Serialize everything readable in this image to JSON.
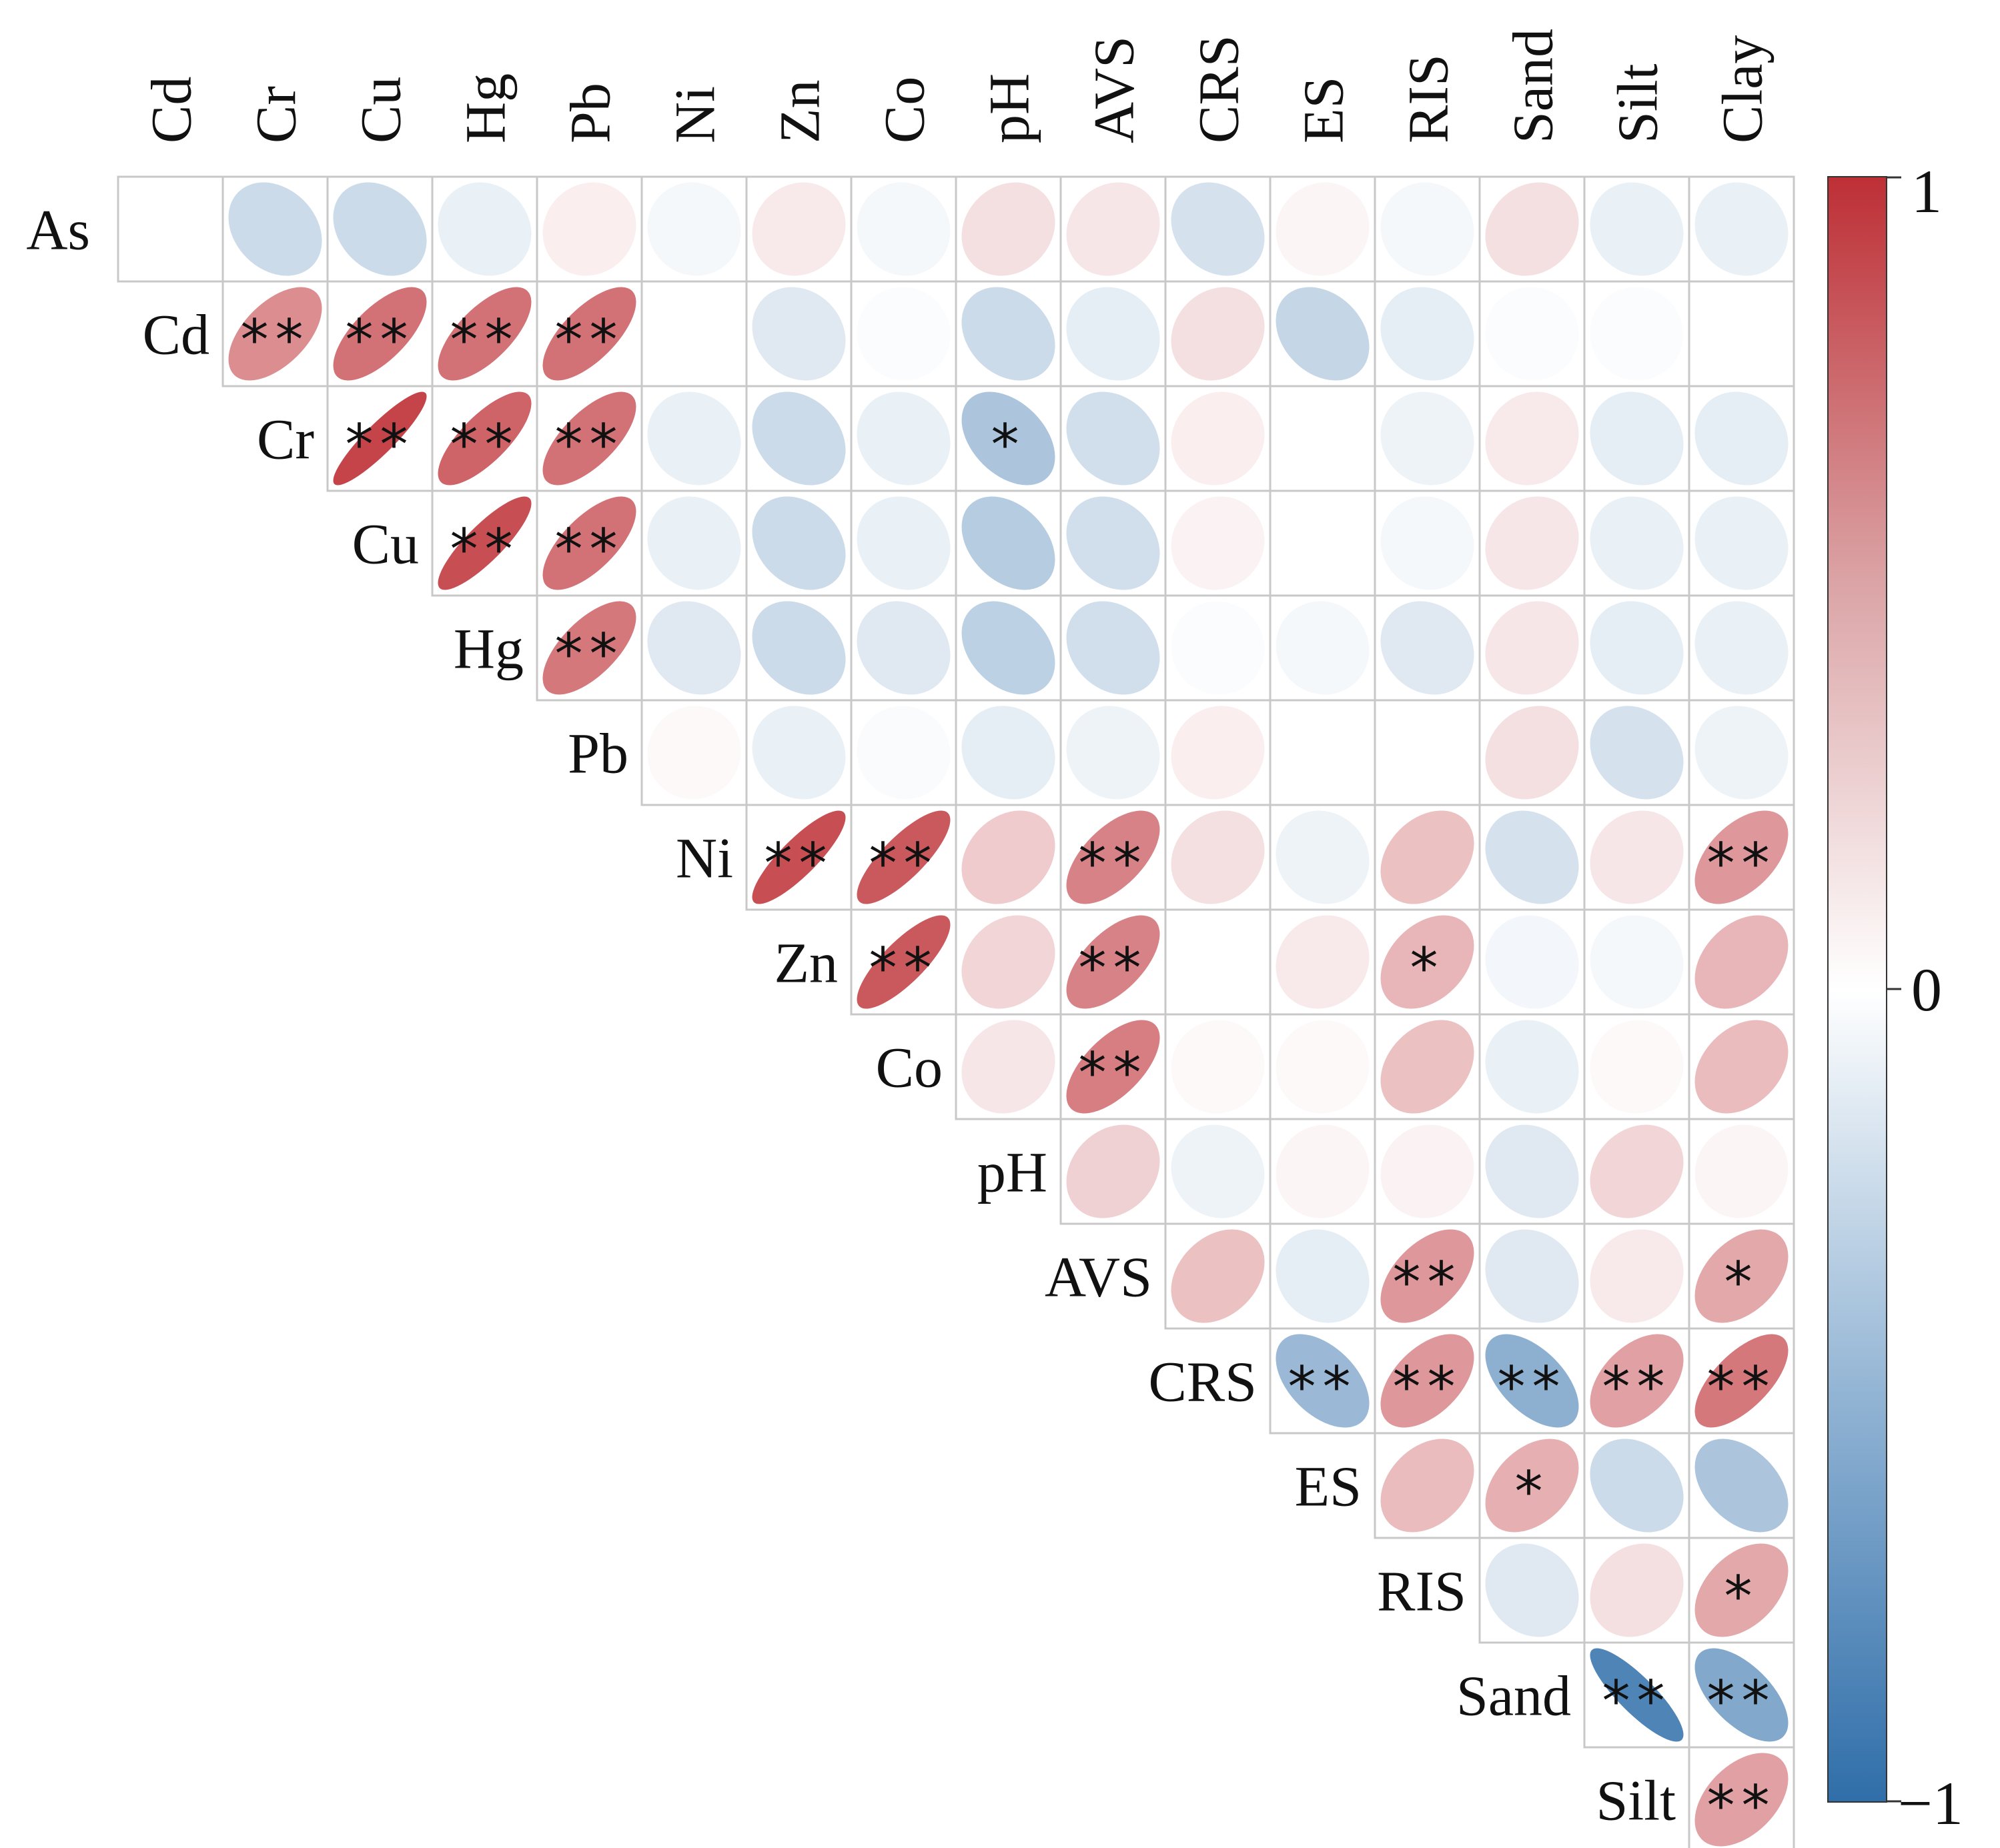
{
  "chart_data": {
    "type": "heatmap",
    "style": "lower-right triangular correlation matrix with ellipse glyphs",
    "row_labels": [
      "As",
      "Cd",
      "Cr",
      "Cu",
      "Hg",
      "Pb",
      "Ni",
      "Zn",
      "Co",
      "pH",
      "AVS",
      "CRS",
      "ES",
      "RIS",
      "Sand",
      "Silt"
    ],
    "col_labels": [
      "Cd",
      "Cr",
      "Cu",
      "Hg",
      "Pb",
      "Ni",
      "Zn",
      "Co",
      "pH",
      "AVS",
      "CRS",
      "ES",
      "RIS",
      "Sand",
      "Silt",
      "Clay"
    ],
    "value_range": [
      -1,
      1
    ],
    "colorbar": {
      "ticks": [
        "1",
        "0",
        "−1"
      ],
      "low_color": "#2f6ea9",
      "mid_color": "#ffffff",
      "high_color": "#bd2f35"
    },
    "values": [
      [
        0,
        -0.25,
        -0.25,
        -0.1,
        0.08,
        -0.05,
        0.1,
        -0.05,
        0.15,
        0.12,
        -0.2,
        0.05,
        -0.05,
        0.15,
        -0.1,
        -0.1
      ],
      [
        0.55,
        0.68,
        0.68,
        0.68,
        0,
        -0.15,
        -0.02,
        -0.25,
        -0.12,
        0.15,
        -0.28,
        -0.12,
        -0.02,
        -0.02,
        0
      ],
      [
        0.9,
        0.75,
        0.68,
        -0.1,
        -0.25,
        -0.1,
        -0.4,
        -0.22,
        0.08,
        0,
        -0.08,
        0.1,
        -0.12,
        -0.12
      ],
      [
        0.85,
        0.68,
        -0.1,
        -0.25,
        -0.1,
        -0.35,
        -0.22,
        0.06,
        0,
        -0.05,
        0.12,
        -0.1,
        -0.1
      ],
      [
        0.65,
        -0.15,
        -0.25,
        -0.15,
        -0.32,
        -0.22,
        -0.02,
        -0.05,
        -0.15,
        0.12,
        -0.12,
        -0.1
      ],
      [
        0.03,
        -0.1,
        -0.03,
        -0.12,
        -0.08,
        0.08,
        0,
        0,
        0.15,
        -0.2,
        -0.08
      ],
      [
        0.85,
        0.8,
        0.25,
        0.6,
        0.15,
        -0.08,
        0.3,
        -0.2,
        0.12,
        0.5
      ],
      [
        0.8,
        0.2,
        0.6,
        0,
        0.1,
        0.35,
        -0.06,
        -0.05,
        0.35
      ],
      [
        0.12,
        0.62,
        0.03,
        0.03,
        0.3,
        -0.1,
        0.03,
        0.32
      ],
      [
        0.22,
        -0.08,
        0.05,
        0.06,
        -0.15,
        0.2,
        0.05
      ],
      [
        0.3,
        -0.12,
        0.5,
        -0.15,
        0.1,
        0.42
      ],
      [
        -0.48,
        0.5,
        -0.55,
        0.45,
        0.65
      ],
      [
        0.32,
        0.38,
        -0.25,
        -0.4
      ],
      [
        -0.15,
        0.15,
        0.42
      ],
      [
        -0.85,
        -0.6
      ],
      [
        0.45
      ]
    ],
    "significance": [
      [
        "",
        "",
        "",
        "",
        "",
        "",
        "",
        "",
        "",
        "",
        "",
        "",
        "",
        "",
        "",
        ""
      ],
      [
        "**",
        "**",
        "**",
        "**",
        "",
        "",
        "",
        "",
        "",
        "",
        "",
        "",
        "",
        "",
        ""
      ],
      [
        "**",
        "**",
        "**",
        "",
        "",
        "",
        "*",
        "",
        "",
        "",
        "",
        "",
        "",
        ""
      ],
      [
        "**",
        "**",
        "",
        "",
        "",
        "",
        "",
        "",
        "",
        "",
        "",
        "",
        ""
      ],
      [
        "**",
        "",
        "",
        "",
        "",
        "",
        "",
        "",
        "",
        "",
        "",
        ""
      ],
      [
        "",
        "",
        "",
        "",
        "",
        "",
        "",
        "",
        "",
        "",
        ""
      ],
      [
        "**",
        "**",
        "",
        "**",
        "",
        "",
        "",
        "",
        "",
        "**"
      ],
      [
        "**",
        "",
        "**",
        "",
        "",
        "*",
        "",
        "",
        ""
      ],
      [
        "",
        "**",
        "",
        "",
        "",
        "",
        "",
        ""
      ],
      [
        "",
        "",
        "",
        "",
        "",
        "",
        ""
      ],
      [
        "",
        "",
        "**",
        "",
        "",
        "*"
      ],
      [
        "**",
        "**",
        "**",
        "**",
        "**"
      ],
      [
        "",
        "*",
        "",
        ""
      ],
      [
        "",
        "",
        "*"
      ],
      [
        "**",
        "**"
      ],
      [
        "**"
      ]
    ]
  }
}
